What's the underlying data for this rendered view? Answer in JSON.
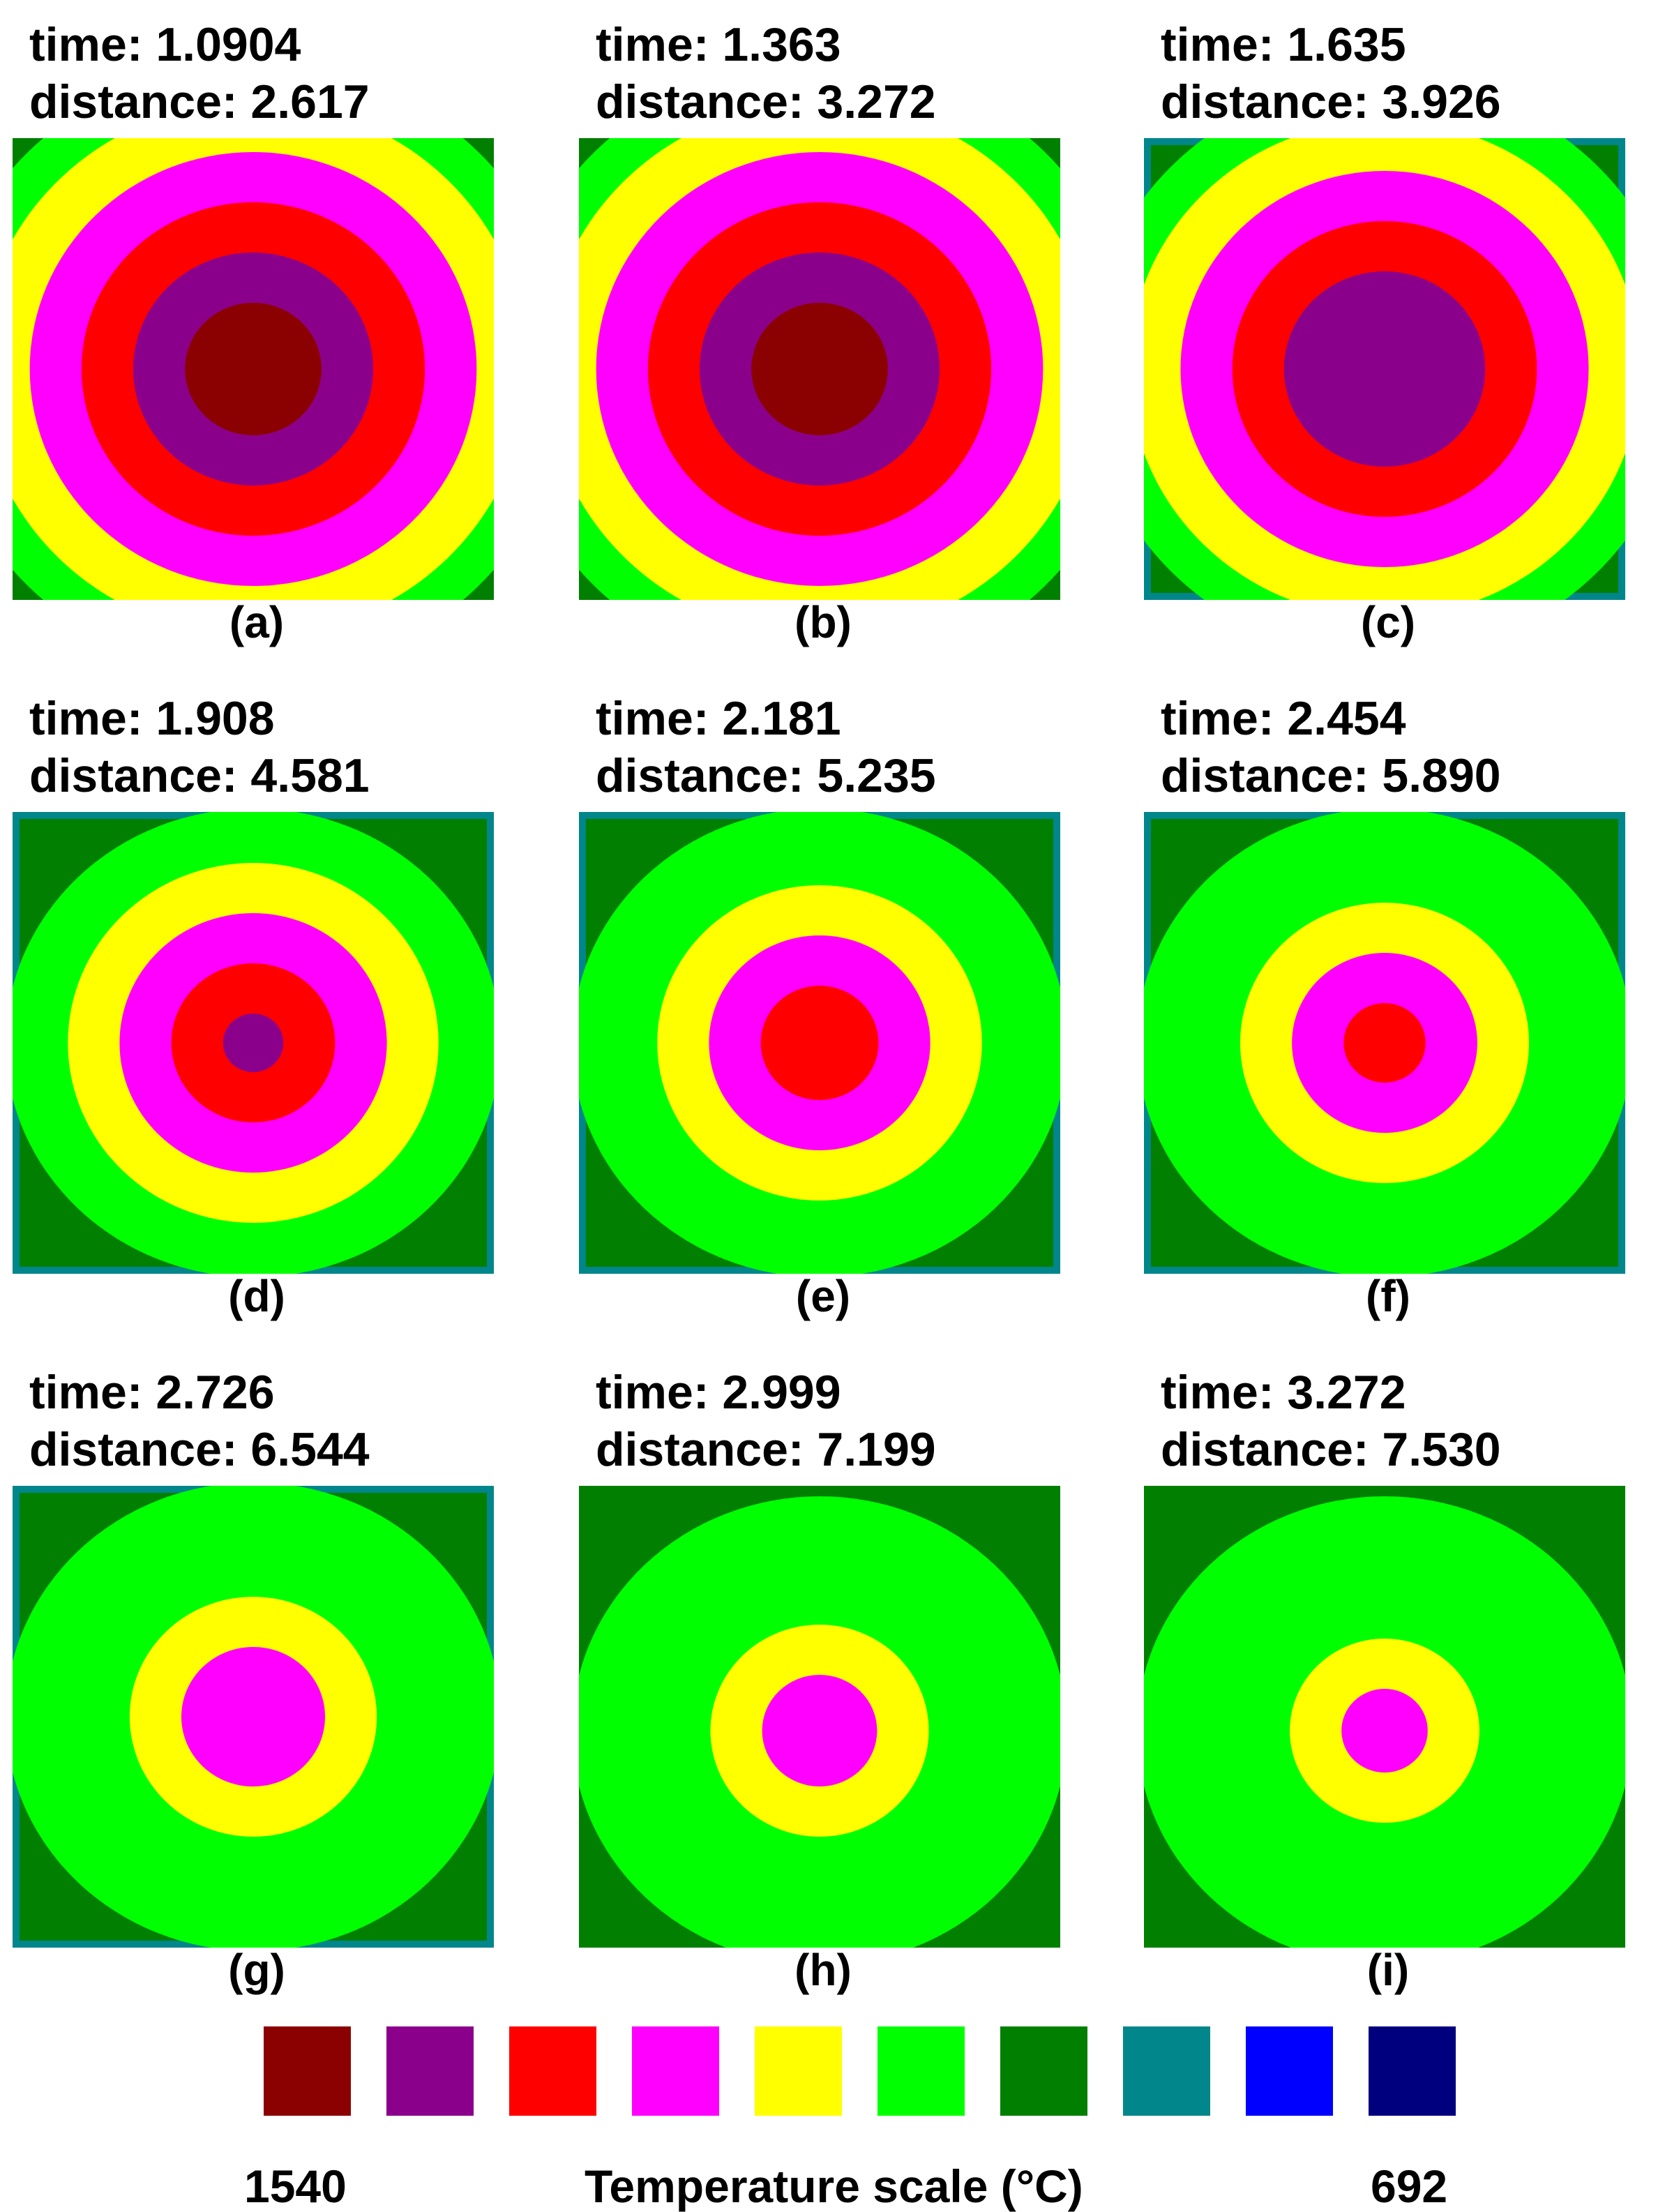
{
  "colors": {
    "dark_red": "#8b0000",
    "purple": "#8b008b",
    "red": "#ff0000",
    "magenta": "#ff00ff",
    "yellow": "#ffff00",
    "green": "#00ff00",
    "dark_green": "#007f00",
    "teal": "#00868b",
    "blue": "#0000ff",
    "navy": "#00007f"
  },
  "panels": [
    {
      "label": "(a)",
      "time": "time: 1.0904",
      "distance": "distance: 2.617",
      "rings": [
        "dark_red",
        "purple",
        "red",
        "magenta",
        "yellow",
        "green"
      ],
      "corner": "dark_green",
      "corner_edge": ""
    },
    {
      "label": "(b)",
      "time": "time: 1.363",
      "distance": "distance: 3.272",
      "rings": [
        "dark_red",
        "purple",
        "red",
        "magenta",
        "yellow",
        "green"
      ],
      "corner": "dark_green",
      "corner_edge": ""
    },
    {
      "label": "(c)",
      "time": "time: 1.635",
      "distance": "distance: 3.926",
      "rings": [
        "purple",
        "red",
        "magenta",
        "yellow",
        "green"
      ],
      "corner": "dark_green",
      "corner_edge": "teal"
    },
    {
      "label": "(d)",
      "time": "time: 1.908",
      "distance": "distance: 4.581",
      "rings": [
        "purple",
        "red",
        "magenta",
        "yellow",
        "green"
      ],
      "corner": "dark_green",
      "corner_edge": "teal"
    },
    {
      "label": "(e)",
      "time": "time: 2.181",
      "distance": "distance: 5.235",
      "rings": [
        "red",
        "magenta",
        "yellow",
        "green"
      ],
      "corner": "dark_green",
      "corner_edge": "teal"
    },
    {
      "label": "(f)",
      "time": "time: 2.454",
      "distance": "distance: 5.890",
      "rings": [
        "red",
        "magenta",
        "yellow",
        "green"
      ],
      "corner": "dark_green",
      "corner_edge": "teal"
    },
    {
      "label": "(g)",
      "time": "time: 2.726",
      "distance": "distance: 6.544",
      "rings": [
        "magenta",
        "yellow",
        "green"
      ],
      "corner": "dark_green",
      "corner_edge": "teal"
    },
    {
      "label": "(h)",
      "time": "time: 2.999",
      "distance": "distance: 7.199",
      "rings": [
        "magenta",
        "yellow",
        "green"
      ],
      "corner": "dark_green",
      "corner_edge": ""
    },
    {
      "label": "(i)",
      "time": "time: 3.272",
      "distance": "distance: 7.530",
      "rings": [
        "magenta",
        "yellow",
        "green"
      ],
      "corner": "dark_green",
      "corner_edge": ""
    }
  ],
  "legend": {
    "title": "Temperature scale (°C)",
    "max_label": "1540",
    "min_label": "692",
    "swatches": [
      "dark_red",
      "purple",
      "red",
      "magenta",
      "yellow",
      "green",
      "dark_green",
      "teal",
      "blue",
      "navy"
    ]
  }
}
